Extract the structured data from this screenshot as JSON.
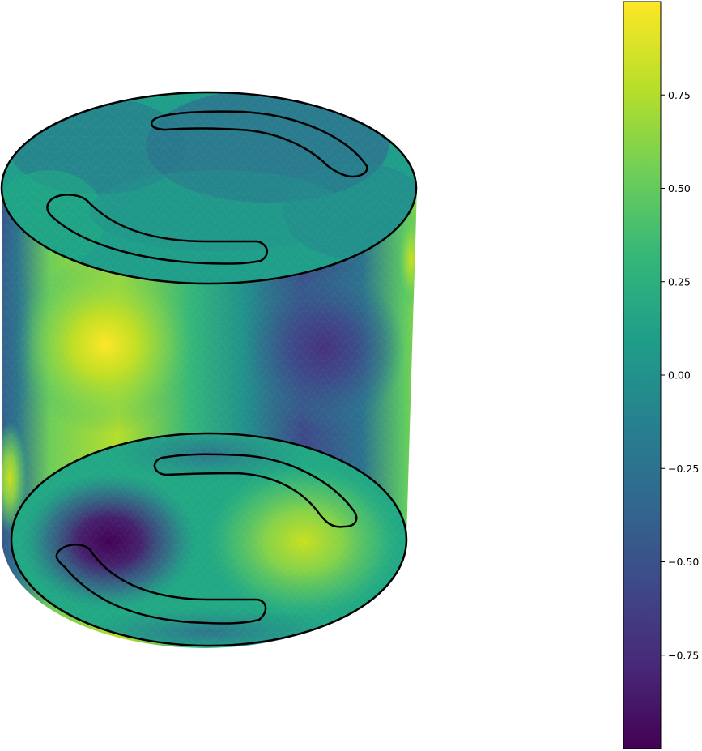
{
  "figure": {
    "type": "3d-surface-plot",
    "shape": "cylinder",
    "colormap": "viridis",
    "colors": {
      "background": "#ffffff",
      "outline": "#000000",
      "colormap_stops": [
        "#440154",
        "#482878",
        "#3e4989",
        "#31688e",
        "#26828e",
        "#1f9e89",
        "#35b779",
        "#6ece58",
        "#b5de2b",
        "#fde725"
      ]
    }
  },
  "colorbar": {
    "value_range": [
      -1.0,
      1.0
    ],
    "ticks": [
      {
        "value": 0.75,
        "label": "0.75"
      },
      {
        "value": 0.5,
        "label": "0.50"
      },
      {
        "value": 0.25,
        "label": "0.25"
      },
      {
        "value": 0.0,
        "label": "0.00"
      },
      {
        "value": -0.25,
        "label": "−0.25"
      },
      {
        "value": -0.5,
        "label": "−0.50"
      },
      {
        "value": -0.75,
        "label": "−0.75"
      }
    ]
  }
}
